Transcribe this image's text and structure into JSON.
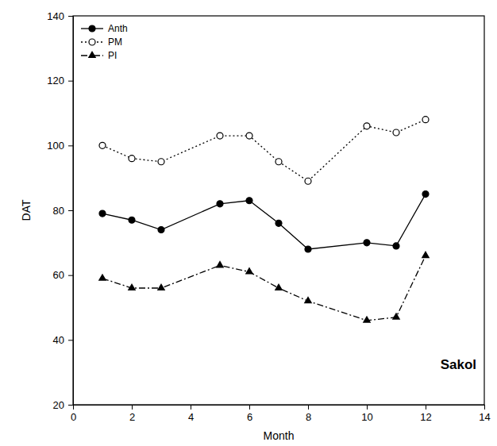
{
  "chart_data": {
    "type": "line",
    "x_label": "Month",
    "y_label": "DAT",
    "annotation": "Sakol",
    "x": [
      1,
      2,
      3,
      5,
      6,
      7,
      8,
      10,
      11,
      12
    ],
    "series": [
      {
        "name": "Anth",
        "color": "#000000",
        "marker": "circle",
        "line_style": "solid",
        "values": [
          79,
          77,
          74,
          82,
          83,
          76,
          68,
          70,
          69,
          85
        ]
      },
      {
        "name": "PM",
        "color": "#000000",
        "marker": "open-circle",
        "line_style": "dotted",
        "values": [
          100,
          96,
          95,
          103,
          103,
          95,
          89,
          106,
          104,
          108
        ]
      },
      {
        "name": "PI",
        "color": "#000000",
        "marker": "triangle",
        "line_style": "dashdot",
        "values": [
          59,
          56,
          56,
          63,
          61,
          56,
          52,
          46,
          47,
          66
        ]
      }
    ],
    "xlim": [
      0,
      14
    ],
    "xticks": [
      0,
      2,
      4,
      6,
      8,
      10,
      12,
      14
    ],
    "ylim": [
      20,
      140
    ],
    "yticks": [
      20,
      40,
      60,
      80,
      100,
      120,
      140
    ],
    "legend": "top-left",
    "grid": false
  }
}
